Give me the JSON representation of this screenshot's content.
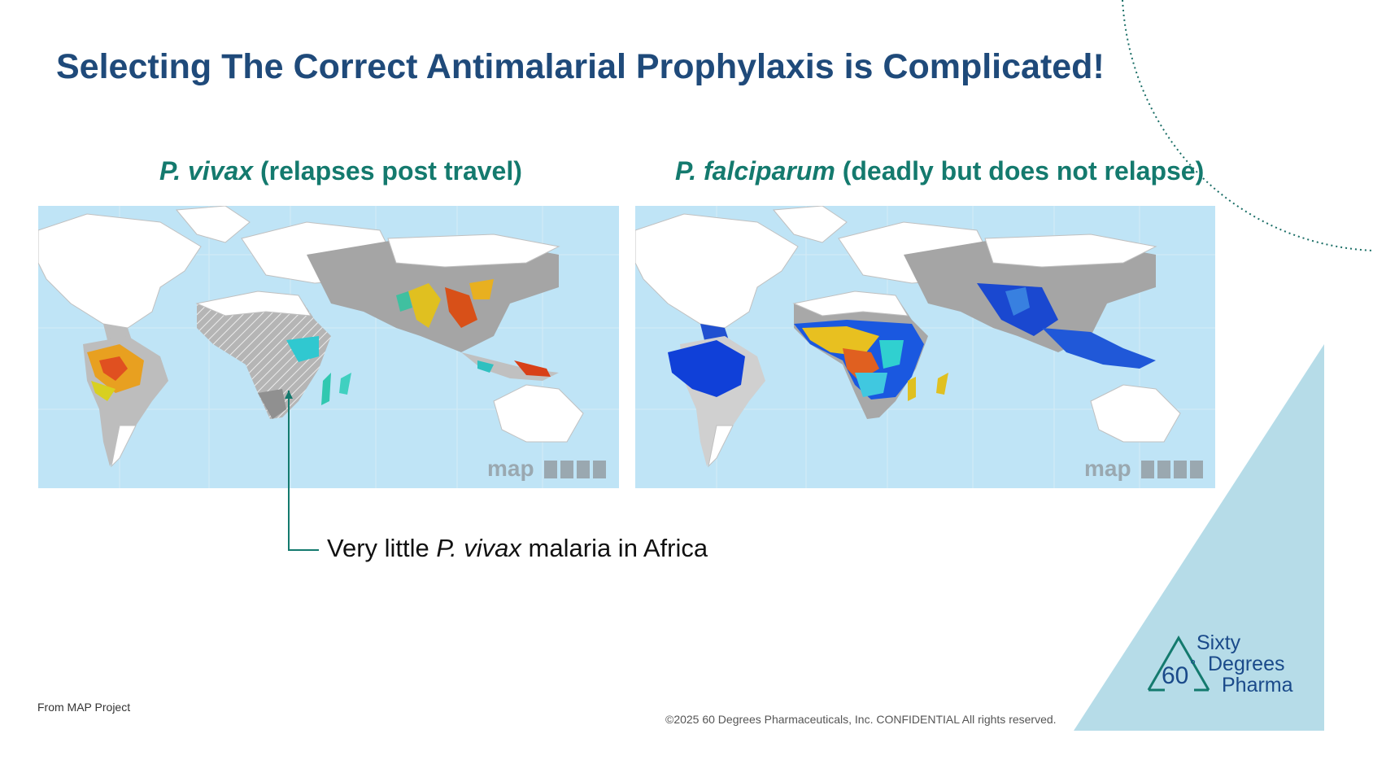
{
  "slide": {
    "title": "Selecting The Correct Antimalarial Prophylaxis is Complicated!"
  },
  "maps": [
    {
      "species": "P. vivax",
      "description": " (relapses post travel)",
      "watermark": "map"
    },
    {
      "species": "P. falciparum",
      "description": " (deadly but does not relapse)",
      "watermark": "map"
    }
  ],
  "annotation": {
    "prefix": "Very little ",
    "species": "P. vivax",
    "suffix": " malaria in Africa"
  },
  "footer": {
    "source": "From MAP Project",
    "copyright": "©2025 60 Degrees Pharmaceuticals, Inc. CONFIDENTIAL All rights reserved."
  },
  "logo": {
    "mark": "60",
    "degree": "°",
    "line1": "Sixty",
    "line2": "Degrees",
    "line3": "Pharma"
  },
  "colors": {
    "title": "#1f4a7a",
    "subtitle": "#147a6e",
    "accent_triangle": "#b6dce8",
    "ocean": "#bfe4f6",
    "logo": "#1a4a8a"
  }
}
